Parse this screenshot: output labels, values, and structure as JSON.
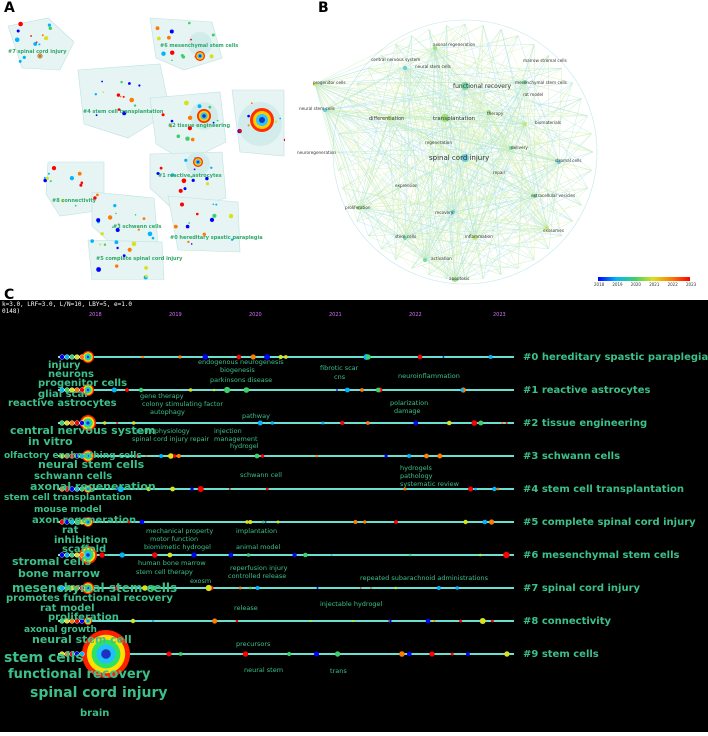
{
  "panels": {
    "a": "A",
    "b": "B",
    "c": "C"
  },
  "panel_a": {
    "clusters": [
      {
        "id": "#7 spinal cord injury"
      },
      {
        "id": "#6 mesenchymal stem cells"
      },
      {
        "id": "#4 stem cell transplantation"
      },
      {
        "id": "#2 tissue engineering"
      },
      {
        "id": "#1 reactive astrocytes"
      },
      {
        "id": "#8 connectivity"
      },
      {
        "id": "#3 schwann cells"
      },
      {
        "id": "#0 hereditary spastic paraplegia"
      },
      {
        "id": "#5 complete spinal cord injury"
      }
    ]
  },
  "panel_b": {
    "terms": [
      "axonal regeneration",
      "central nervous system",
      "marrow stromal cells",
      "neural stem cells",
      "progenitor cells",
      "functional recovery",
      "mesenchymal stem cells",
      "neural stem cells",
      "differentiation",
      "transplantation",
      "neuroregeneration",
      "regeneration",
      "spinal cord injury",
      "expression",
      "recovery",
      "stem cells",
      "activation",
      "apoptosis",
      "inflammation",
      "therapy",
      "delivery",
      "repair",
      "proliferation",
      "rat model",
      "stromal cells",
      "exosomes",
      "extracellular vesicles",
      "biomaterials"
    ],
    "legend": {
      "years": [
        "2018",
        "2019",
        "2020",
        "2021",
        "2022",
        "2023"
      ],
      "colors": [
        "#0000ff",
        "#00b4ff",
        "#3dcf6a",
        "#d8e21c",
        "#ff7a00",
        "#ff0000"
      ]
    }
  },
  "panel_c": {
    "header_line1": "k=3.0, LRF=3.0, L/N=10, LBY=5, e=1.0",
    "header_line2": "0148)",
    "years": [
      "2018",
      "2019",
      "2020",
      "2021",
      "2022",
      "2023"
    ],
    "clusters": [
      "#0 hereditary spastic paraplegia",
      "#1 reactive astrocytes",
      "#2 tissue engineering",
      "#3 schwann cells",
      "#4 stem cell transplantation",
      "#5 complete spinal cord injury",
      "#6 mesenchymal stem cells",
      "#7 spinal cord injury",
      "#8 connectivity",
      "#9 stem cells"
    ],
    "left_labels": [
      "injury",
      "neurons",
      "progenitor cells",
      "glial scar",
      "reactive astrocytes",
      "central nervous system",
      "in vitro",
      "olfactory ensheathing cells",
      "neural stem cells",
      "schwann cells",
      "axonal regeneration",
      "stem cell transplantation",
      "mouse model",
      "axon regeneration",
      "rat",
      "inhibition",
      "scaffold",
      "stromal cells",
      "bone marrow",
      "mesenchymal stem cells",
      "promotes functional recovery",
      "rat model",
      "proliferation",
      "axonal growth",
      "neural stem cell",
      "stem cells",
      "functional recovery",
      "spinal cord injury",
      "brain"
    ],
    "mid_labels": [
      "endogenous neurogenesis",
      "biogenesis",
      "parkinsons disease",
      "fibrotic scar",
      "cns",
      "neuroinflammation",
      "gene therapy",
      "colony stimulating factor",
      "autophagy",
      "pathway",
      "polarization",
      "damage",
      "pathophysiology",
      "spinal cord injury repair",
      "injection",
      "management",
      "hydrogel",
      "schwann cell",
      "hydrogels",
      "pathology",
      "systematic review",
      "mechanical property",
      "motor function",
      "biomimetic hydrogel",
      "implantation",
      "animal model",
      "human bone marrow",
      "stem cell therapy",
      "exosm",
      "reperfusion injury",
      "controlled release",
      "repeated subarachnoid administrations",
      "release",
      "injectable hydrogel",
      "precursors",
      "neural stem",
      "trans"
    ]
  }
}
